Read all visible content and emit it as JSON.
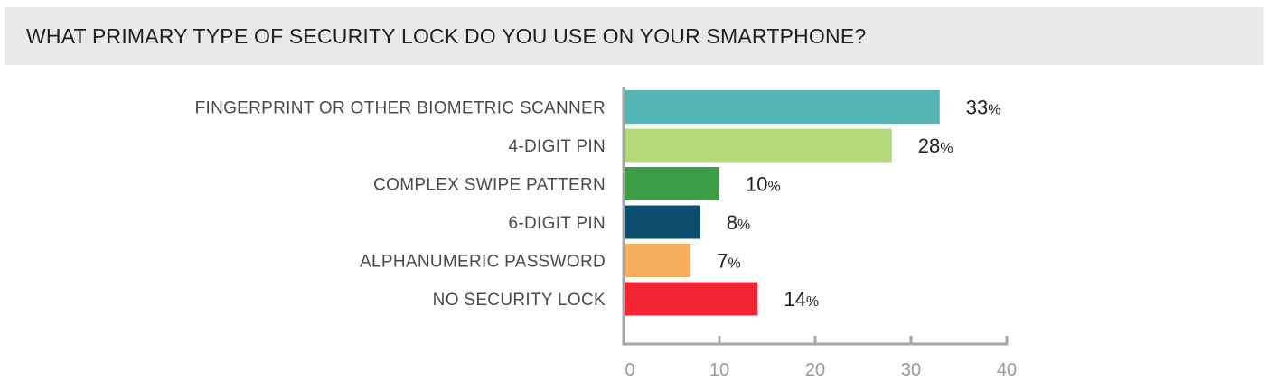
{
  "chart_data": {
    "type": "bar",
    "orientation": "horizontal",
    "title": "WHAT PRIMARY TYPE OF SECURITY LOCK DO YOU USE ON YOUR SMARTPHONE?",
    "categories": [
      "FINGERPRINT OR OTHER BIOMETRIC SCANNER",
      "4-DIGIT PIN",
      "COMPLEX SWIPE PATTERN",
      "6-DIGIT PIN",
      "ALPHANUMERIC PASSWORD",
      "NO SECURITY LOCK"
    ],
    "values": [
      33,
      28,
      10,
      8,
      7,
      14
    ],
    "value_suffix": "%",
    "colors": [
      "#55b5b5",
      "#b5d97a",
      "#3e9e47",
      "#0d4d6e",
      "#f9b05e",
      "#f42434"
    ],
    "xlim": [
      0,
      40
    ],
    "xticks": [
      0,
      10,
      20,
      30,
      40
    ],
    "xlabel": "",
    "ylabel": "",
    "grid": false,
    "axis_color": "#a6a6a6"
  }
}
